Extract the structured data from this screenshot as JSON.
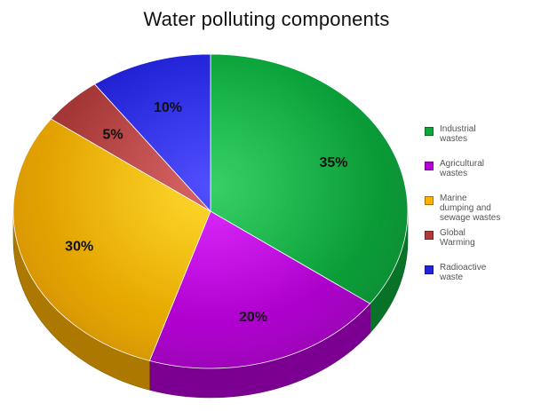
{
  "chart_data": {
    "type": "pie",
    "title": "Water polluting components",
    "categories": [
      "Industrial wastes",
      "Agricultural wastes",
      "Marine dumping and sewage wastes",
      "Global Warming",
      "Radioactive waste"
    ],
    "values": [
      35,
      20,
      30,
      5,
      10
    ],
    "data_labels": [
      "35%",
      "20%",
      "30%",
      "5%",
      "10%"
    ],
    "colors": [
      "#0aa83b",
      "#b500d6",
      "#ffb000",
      "#b03a3a",
      "#2323e0"
    ],
    "legend_position": "right",
    "style": "3d"
  },
  "legend": {
    "items": [
      {
        "line1": "Industrial",
        "line2": "wastes",
        "line3": ""
      },
      {
        "line1": "Agricultural",
        "line2": "wastes",
        "line3": ""
      },
      {
        "line1": "Marine",
        "line2": "dumping and",
        "line3": "sewage wastes"
      },
      {
        "line1": "Global",
        "line2": "Warming",
        "line3": ""
      },
      {
        "line1": "Radioactive",
        "line2": "waste",
        "line3": ""
      }
    ]
  }
}
